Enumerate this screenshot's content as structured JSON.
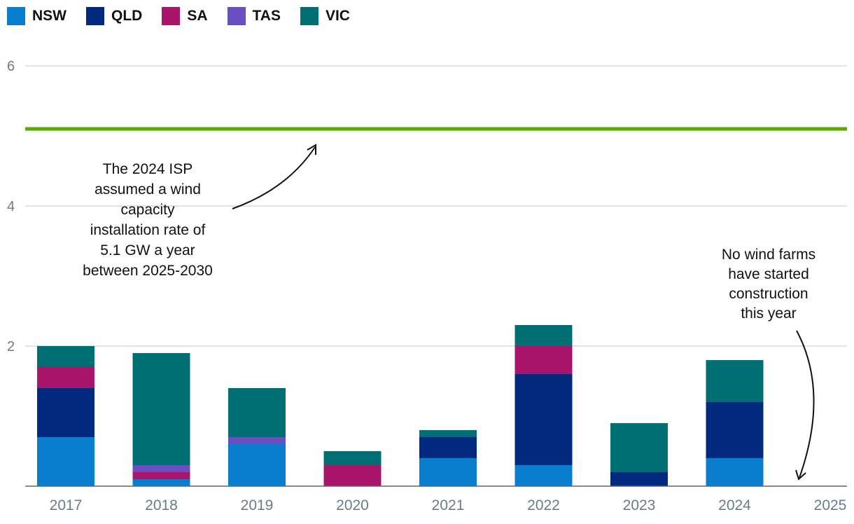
{
  "chart_data": {
    "type": "bar",
    "stacked": true,
    "categories": [
      "2017",
      "2018",
      "2019",
      "2020",
      "2021",
      "2022",
      "2023",
      "2024",
      "2025"
    ],
    "series": [
      {
        "name": "NSW",
        "color": "#0a7dcd",
        "values": [
          0.7,
          0.1,
          0.6,
          0.0,
          0.4,
          0.3,
          0.0,
          0.4,
          0
        ]
      },
      {
        "name": "QLD",
        "color": "#012a7f",
        "values": [
          0.7,
          0.0,
          0.0,
          0.0,
          0.3,
          1.3,
          0.2,
          0.8,
          0
        ]
      },
      {
        "name": "SA",
        "color": "#a8166b",
        "values": [
          0.3,
          0.1,
          0.0,
          0.3,
          0.0,
          0.4,
          0.0,
          0.0,
          0
        ]
      },
      {
        "name": "TAS",
        "color": "#6a4fc0",
        "values": [
          0.0,
          0.1,
          0.1,
          0.0,
          0.0,
          0.0,
          0.0,
          0.0,
          0
        ]
      },
      {
        "name": "VIC",
        "color": "#006f74",
        "values": [
          0.3,
          1.6,
          0.7,
          0.2,
          0.1,
          0.3,
          0.7,
          0.6,
          0
        ]
      }
    ],
    "yticks": [
      "2",
      "4",
      "6"
    ],
    "ylim": [
      0,
      6
    ],
    "reference_line": {
      "value": 5.1,
      "color": "#5aa800"
    },
    "annotations": [
      {
        "lines": [
          "The 2024 ISP",
          "assumed a wind",
          "capacity",
          "installation rate of",
          "5.1 GW a year",
          "between 2025-2030"
        ]
      },
      {
        "lines": [
          "No wind farms",
          "have started",
          "construction",
          "this year"
        ]
      }
    ],
    "legend_position": "top-left"
  }
}
